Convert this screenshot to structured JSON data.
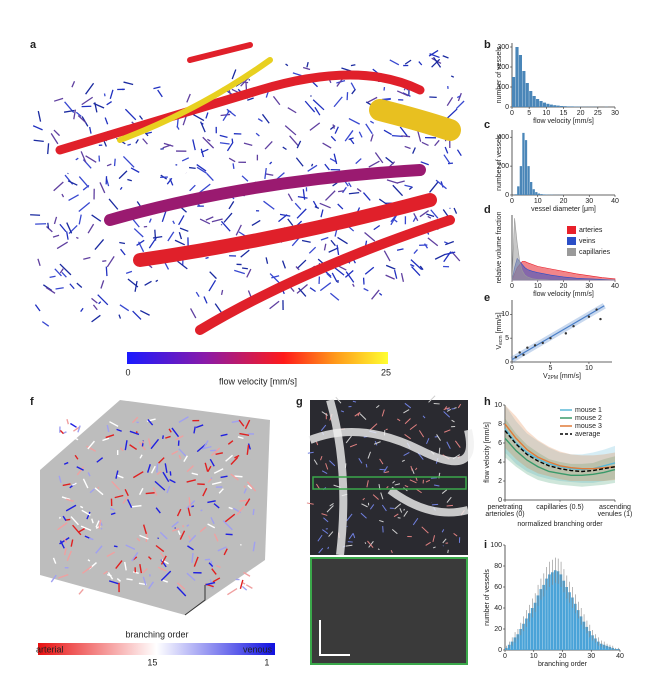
{
  "panels": {
    "letters": [
      "a",
      "b",
      "c",
      "d",
      "e",
      "f",
      "g",
      "h",
      "i"
    ],
    "a_colorbar": {
      "label": "flow velocity [mm/s]",
      "lim": [
        0,
        25
      ],
      "ticks": [
        0,
        25
      ]
    },
    "f_colorbar": {
      "label": "branching order",
      "left": "arterial",
      "right": "venous",
      "lim": [
        29,
        0
      ],
      "ticks": [
        15,
        1
      ]
    }
  },
  "chart_data": [
    {
      "type": "histogram",
      "xlabel": "flow velocity [mm/s]",
      "ylabel": "number of vessels",
      "color": "#4a86b8",
      "bins": [
        0,
        1,
        2,
        3,
        4,
        5,
        6,
        7,
        8,
        9,
        10,
        11,
        12,
        13,
        14,
        15,
        16,
        17,
        18,
        19,
        20,
        21,
        22,
        23,
        24,
        25,
        26,
        27,
        28,
        29,
        30
      ],
      "counts": [
        150,
        300,
        260,
        180,
        120,
        80,
        55,
        40,
        30,
        22,
        16,
        12,
        9,
        7,
        5,
        4,
        3,
        3,
        2,
        2,
        1,
        1,
        1,
        1,
        1,
        0,
        0,
        1,
        0,
        0
      ],
      "xlim": [
        0,
        30
      ],
      "xticks": [
        0,
        5,
        10,
        15,
        20,
        25,
        30
      ],
      "ylim": [
        0,
        320
      ],
      "yticks": [
        0,
        100,
        200,
        300
      ]
    },
    {
      "type": "histogram",
      "xlabel": "vessel diameter [μm]",
      "ylabel": "number of vessels",
      "color": "#4a86b8",
      "bins": [
        0,
        1,
        2,
        3,
        4,
        5,
        6,
        7,
        8,
        9,
        10,
        11,
        12,
        13,
        14,
        15,
        16,
        17,
        18,
        19,
        20,
        21,
        22,
        23,
        24,
        25,
        26,
        27,
        28,
        29,
        30,
        31,
        32,
        33,
        34,
        35,
        36,
        37,
        38,
        39,
        40
      ],
      "counts": [
        0,
        5,
        60,
        200,
        430,
        380,
        200,
        90,
        40,
        20,
        10,
        6,
        4,
        3,
        2,
        2,
        1,
        1,
        1,
        1,
        0,
        0,
        0,
        0,
        0,
        0,
        0,
        0,
        0,
        0,
        0,
        0,
        0,
        0,
        0,
        0,
        0,
        0,
        0,
        0
      ],
      "xlim": [
        0,
        40
      ],
      "xticks": [
        0,
        10,
        20,
        30,
        40
      ],
      "ylim": [
        0,
        450
      ],
      "yticks": [
        0,
        200,
        400
      ]
    },
    {
      "type": "area",
      "xlabel": "flow velocity [mm/s]",
      "ylabel": "relative volume fraction",
      "x": [
        0,
        1,
        2,
        3,
        4,
        5,
        6,
        8,
        10,
        15,
        20,
        25,
        30,
        35,
        40
      ],
      "series": [
        {
          "name": "arteries",
          "color": "#e8202a",
          "values": [
            0,
            0.1,
            0.2,
            0.25,
            0.3,
            0.3,
            0.28,
            0.25,
            0.22,
            0.18,
            0.14,
            0.1,
            0.07,
            0.04,
            0.02
          ]
        },
        {
          "name": "veins",
          "color": "#2b4fc7",
          "values": [
            0,
            0.2,
            0.35,
            0.3,
            0.25,
            0.2,
            0.17,
            0.14,
            0.12,
            0.08,
            0.05,
            0.03,
            0.02,
            0.01,
            0
          ]
        },
        {
          "name": "capillaries",
          "color": "#9a9a9a",
          "values": [
            0,
            1.0,
            0.6,
            0.3,
            0.15,
            0.08,
            0.05,
            0.02,
            0.01,
            0,
            0,
            0,
            0,
            0,
            0
          ]
        }
      ],
      "xlim": [
        0,
        40
      ],
      "xticks": [
        0,
        10,
        20,
        30,
        40
      ],
      "ylim": [
        0,
        1.05
      ]
    },
    {
      "type": "scatter",
      "xlabel": {
        "main": "V",
        "sub": "2PM",
        "unit": " [mm/s]"
      },
      "ylabel": {
        "main": "V",
        "sub": "ecm",
        "unit": " [mm/s]"
      },
      "x": [
        0.5,
        1,
        1.5,
        2,
        3,
        4,
        5,
        7,
        8,
        10,
        11,
        11.5
      ],
      "y": [
        1,
        2,
        1.5,
        3,
        3.5,
        4,
        5,
        6,
        7.5,
        9.5,
        11,
        9
      ],
      "color": "#333333",
      "fit": {
        "x": [
          0,
          12
        ],
        "y": [
          0.5,
          11.8
        ],
        "color": "#4a7fc8"
      },
      "xlim": [
        0,
        13
      ],
      "xticks": [
        0,
        5,
        10
      ],
      "ylim": [
        0,
        13
      ],
      "yticks": [
        0,
        5,
        10
      ]
    },
    {
      "type": "line",
      "xlabel": "normalized branching order",
      "ylabel": "flow velocity [mm/s]",
      "x": [
        0,
        0.1,
        0.2,
        0.3,
        0.4,
        0.5,
        0.6,
        0.7,
        0.8,
        0.9,
        1
      ],
      "series": [
        {
          "name": "mouse 1",
          "color": "#5bb8d6",
          "values": [
            7.5,
            6,
            5,
            4.3,
            3.8,
            3.5,
            3.3,
            3.2,
            3.3,
            3.6,
            3.9
          ],
          "lower": [
            5,
            3.8,
            3,
            2.5,
            2.2,
            2,
            1.9,
            1.8,
            1.8,
            2,
            2.2
          ],
          "upper": [
            10,
            8.3,
            7,
            6.2,
            5.5,
            5,
            4.8,
            4.8,
            5,
            5.3,
            5.7
          ]
        },
        {
          "name": "mouse 2",
          "color": "#3a9a6a",
          "values": [
            6.5,
            5.2,
            4.2,
            3.5,
            3,
            2.8,
            2.6,
            2.6,
            2.7,
            2.9,
            3.2
          ],
          "lower": [
            4.5,
            3.5,
            2.7,
            2.1,
            1.8,
            1.6,
            1.5,
            1.4,
            1.5,
            1.6,
            1.8
          ],
          "upper": [
            8.6,
            7,
            5.8,
            5,
            4.3,
            4,
            3.8,
            3.8,
            3.9,
            4.3,
            4.6
          ]
        },
        {
          "name": "mouse 3",
          "color": "#e07b39",
          "values": [
            8,
            6.5,
            5.3,
            4.5,
            4,
            3.6,
            3.4,
            3.3,
            3.3,
            3.4,
            3.5
          ],
          "lower": [
            5.5,
            4.3,
            3.4,
            2.8,
            2.5,
            2.2,
            2,
            2,
            2,
            2,
            2.1
          ],
          "upper": [
            10,
            8.8,
            7.3,
            6.3,
            5.6,
            5.1,
            4.8,
            4.7,
            4.7,
            4.8,
            5
          ]
        },
        {
          "name": "average",
          "color": "#000000",
          "dashed": true,
          "values": [
            7.3,
            5.9,
            4.8,
            4.1,
            3.6,
            3.3,
            3.1,
            3.0,
            3.1,
            3.3,
            3.5
          ]
        }
      ],
      "xlim": [
        0,
        1
      ],
      "xticks": [
        {
          "value": 0,
          "label": [
            "penetrating",
            "arterioles (0)"
          ]
        },
        {
          "value": 0.5,
          "label": [
            "capillaries (0.5)"
          ]
        },
        {
          "value": 1,
          "label": [
            "ascending",
            "venules (1)"
          ]
        }
      ],
      "ylim": [
        0,
        10
      ],
      "yticks": [
        0,
        2,
        4,
        6,
        8,
        10
      ]
    },
    {
      "type": "histogram",
      "xlabel": "branching order",
      "ylabel": "number of vessels",
      "color": "#4aa3d8",
      "bins": [
        0,
        1,
        2,
        3,
        4,
        5,
        6,
        7,
        8,
        9,
        10,
        11,
        12,
        13,
        14,
        15,
        16,
        17,
        18,
        19,
        20,
        21,
        22,
        23,
        24,
        25,
        26,
        27,
        28,
        29,
        30,
        31,
        32,
        33,
        34,
        35,
        36,
        37,
        38,
        39,
        40
      ],
      "counts": [
        2,
        5,
        8,
        12,
        15,
        20,
        25,
        30,
        35,
        40,
        45,
        52,
        58,
        62,
        68,
        72,
        74,
        76,
        75,
        72,
        66,
        60,
        55,
        50,
        44,
        38,
        32,
        27,
        22,
        18,
        14,
        11,
        8,
        6,
        5,
        4,
        3,
        2,
        1,
        1
      ],
      "errors": [
        2,
        3,
        4,
        5,
        5,
        6,
        7,
        8,
        8,
        9,
        9,
        10,
        10,
        11,
        11,
        12,
        12,
        12,
        12,
        12,
        11,
        11,
        10,
        10,
        9,
        8,
        8,
        7,
        6,
        6,
        5,
        4,
        4,
        3,
        3,
        2,
        2,
        2,
        1,
        1
      ],
      "xlim": [
        0,
        40
      ],
      "xticks": [
        0,
        10,
        20,
        30,
        40
      ],
      "ylim": [
        0,
        100
      ],
      "yticks": [
        0,
        20,
        40,
        60,
        80,
        100
      ]
    }
  ]
}
